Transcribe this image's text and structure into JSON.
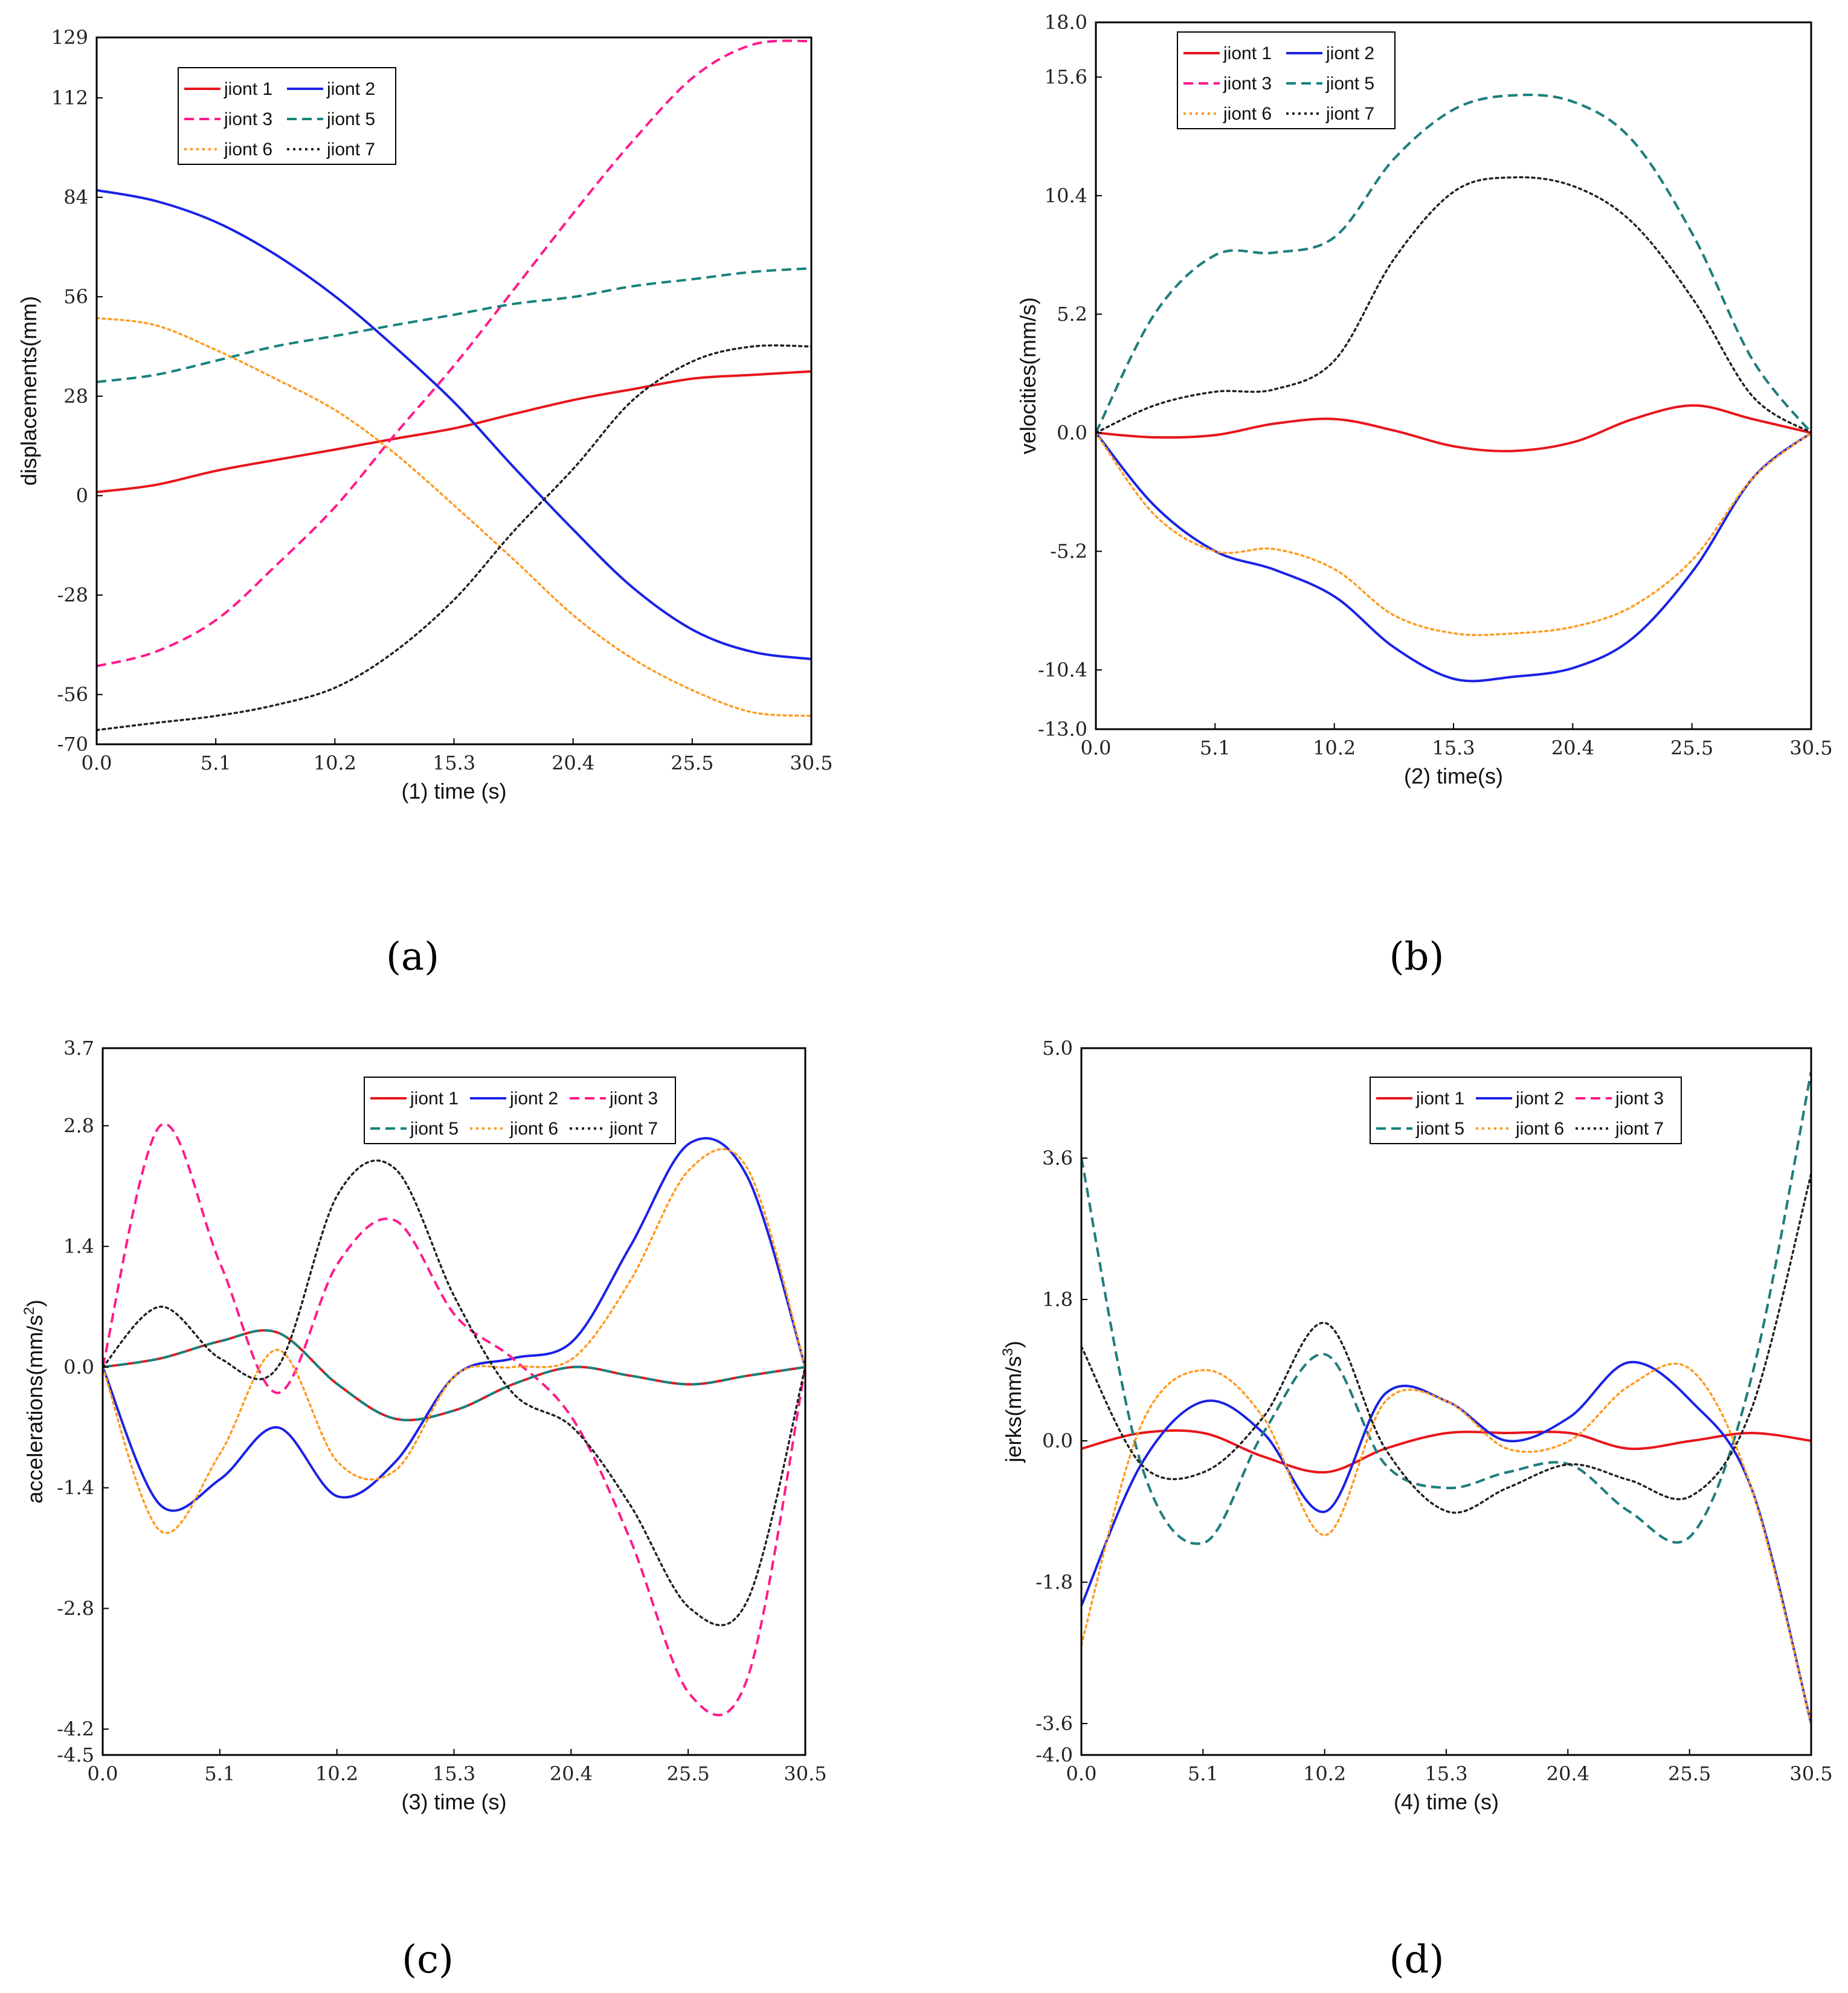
{
  "colors": {
    "jiont 1": "#e8151b",
    "jiont 2": "#1a22e6",
    "jiont 3": "#ff1a8c",
    "jiont 5": "#17827d",
    "jiont 6": "#ff9a1f",
    "jiont 7": "#222222"
  },
  "dash_styles": {
    "jiont 1": "solid",
    "jiont 2": "solid",
    "jiont 3": "dashed",
    "jiont 5": "dashed",
    "jiont 6": "dotted",
    "jiont 7": "dotted"
  },
  "chart_data": [
    {
      "type": "line",
      "panel_label": "(a)",
      "xlabel": "(1) time (s)",
      "ylabel": "displacements(mm)",
      "xlim": [
        0,
        30.5
      ],
      "ylim": [
        -70,
        129
      ],
      "xticks": [
        "0.0",
        "5.1",
        "10.2",
        "15.3",
        "20.4",
        "25.5",
        "30.5"
      ],
      "yticks": [
        -70,
        -56,
        -28,
        0,
        28,
        56,
        84,
        112,
        129
      ],
      "ytick_labels": [
        "-70",
        "-56",
        "-28",
        "0",
        "28",
        "56",
        "84",
        "112",
        "129"
      ],
      "legend_location": "upper-left",
      "legend_columns": 2,
      "series": [
        {
          "name": "jiont 1",
          "x": [
            0,
            2.5,
            5.1,
            7.6,
            10.2,
            12.7,
            15.3,
            17.8,
            20.4,
            22.9,
            25.5,
            28,
            30.5
          ],
          "values": [
            1,
            3,
            7,
            10,
            13,
            16,
            19,
            23,
            27,
            30,
            33,
            34,
            35
          ]
        },
        {
          "name": "jiont 2",
          "x": [
            0,
            2.5,
            5.1,
            7.6,
            10.2,
            12.7,
            15.3,
            17.8,
            20.4,
            22.9,
            25.5,
            28,
            30.5
          ],
          "values": [
            86,
            83,
            77,
            68,
            56,
            42,
            26,
            8,
            -10,
            -26,
            -38,
            -44,
            -46
          ]
        },
        {
          "name": "jiont 3",
          "x": [
            0,
            2.5,
            5.1,
            7.6,
            10.2,
            12.7,
            15.3,
            17.8,
            20.4,
            22.9,
            25.5,
            28,
            30.5
          ],
          "values": [
            -48,
            -44,
            -35,
            -20,
            -3,
            17,
            37,
            58,
            80,
            100,
            118,
            127,
            128
          ]
        },
        {
          "name": "jiont 5",
          "x": [
            0,
            2.5,
            5.1,
            7.6,
            10.2,
            12.7,
            15.3,
            17.8,
            20.4,
            22.9,
            25.5,
            28,
            30.5
          ],
          "values": [
            32,
            34,
            38,
            42,
            45,
            48,
            51,
            54,
            56,
            59,
            61,
            63,
            64
          ]
        },
        {
          "name": "jiont 6",
          "x": [
            0,
            2.5,
            5.1,
            7.6,
            10.2,
            12.7,
            15.3,
            17.8,
            20.4,
            22.9,
            25.5,
            28,
            30.5
          ],
          "values": [
            50,
            48,
            41,
            33,
            24,
            12,
            -3,
            -18,
            -34,
            -46,
            -55,
            -61,
            -62
          ]
        },
        {
          "name": "jiont 7",
          "x": [
            0,
            2.5,
            5.1,
            7.6,
            10.2,
            12.7,
            15.3,
            17.8,
            20.4,
            22.9,
            25.5,
            28,
            30.5
          ],
          "values": [
            -66,
            -64,
            -62,
            -59,
            -54,
            -44,
            -29,
            -10,
            8,
            27,
            38,
            42,
            42
          ]
        }
      ]
    },
    {
      "type": "line",
      "panel_label": "(b)",
      "xlabel": "(2) time(s)",
      "ylabel": "velocities(mm/s)",
      "xlim": [
        0,
        30.5
      ],
      "ylim": [
        -13.0,
        18.0
      ],
      "xticks": [
        "0.0",
        "5.1",
        "10.2",
        "15.3",
        "20.4",
        "25.5",
        "30.5"
      ],
      "yticks": [
        -13.0,
        -10.4,
        -5.2,
        0.0,
        5.2,
        10.4,
        15.6,
        18.0
      ],
      "ytick_labels": [
        "-13.0",
        "-10.4",
        "-5.2",
        "0.0",
        "5.2",
        "10.4",
        "15.6",
        "18.0"
      ],
      "legend_location": "upper-left",
      "legend_columns": 2,
      "series": [
        {
          "name": "jiont 1",
          "x": [
            0,
            2.5,
            5.1,
            7.6,
            10.2,
            12.7,
            15.3,
            17.8,
            20.4,
            22.9,
            25.5,
            28,
            30.5
          ],
          "values": [
            0,
            -0.2,
            -0.1,
            0.4,
            0.6,
            0.1,
            -0.6,
            -0.8,
            -0.4,
            0.6,
            1.2,
            0.6,
            0
          ]
        },
        {
          "name": "jiont 2",
          "x": [
            0,
            2.5,
            5.1,
            7.6,
            10.2,
            12.7,
            15.3,
            17.8,
            20.4,
            22.9,
            25.5,
            28,
            30.5
          ],
          "values": [
            0,
            -3.2,
            -5.2,
            -6.0,
            -7.2,
            -9.4,
            -10.8,
            -10.7,
            -10.3,
            -9.0,
            -6.0,
            -2.0,
            0
          ]
        },
        {
          "name": "jiont 3",
          "x": [
            0,
            2.5,
            5.1,
            7.6,
            10.2,
            12.7,
            15.3,
            17.8,
            20.4,
            22.9,
            25.5,
            28,
            30.5
          ],
          "values": [
            0,
            5.2,
            7.8,
            7.9,
            8.6,
            12.0,
            14.2,
            14.8,
            14.5,
            12.8,
            8.6,
            3.2,
            0
          ]
        },
        {
          "name": "jiont 5",
          "x": [
            0,
            2.5,
            5.1,
            7.6,
            10.2,
            12.7,
            15.3,
            17.8,
            20.4,
            22.9,
            25.5,
            28,
            30.5
          ],
          "values": [
            0,
            5.2,
            7.8,
            7.9,
            8.6,
            12.0,
            14.2,
            14.8,
            14.5,
            12.8,
            8.6,
            3.2,
            0
          ]
        },
        {
          "name": "jiont 6",
          "x": [
            0,
            2.5,
            5.1,
            7.6,
            10.2,
            12.7,
            15.3,
            17.8,
            20.4,
            22.9,
            25.5,
            28,
            30.5
          ],
          "values": [
            0,
            -3.6,
            -5.2,
            -5.1,
            -6.0,
            -8.0,
            -8.8,
            -8.8,
            -8.5,
            -7.6,
            -5.5,
            -2.0,
            0
          ]
        },
        {
          "name": "jiont 7",
          "x": [
            0,
            2.5,
            5.1,
            7.6,
            10.2,
            12.7,
            15.3,
            17.8,
            20.4,
            22.9,
            25.5,
            28,
            30.5
          ],
          "values": [
            0,
            1.2,
            1.8,
            1.9,
            3.2,
            7.6,
            10.6,
            11.2,
            10.8,
            9.2,
            5.8,
            1.6,
            0
          ]
        }
      ]
    },
    {
      "type": "line",
      "panel_label": "(c)",
      "xlabel": "(3) time (s)",
      "ylabel_main": "accelerations(mm/s",
      "ylabel_sup": "2",
      "ylabel_end": ")",
      "xlim": [
        0,
        30.5
      ],
      "ylim": [
        -4.5,
        3.7
      ],
      "xticks": [
        "0.0",
        "5.1",
        "10.2",
        "15.3",
        "20.4",
        "25.5",
        "30.5"
      ],
      "yticks": [
        -4.5,
        -4.2,
        -2.8,
        -1.4,
        0.0,
        1.4,
        2.8,
        3.7
      ],
      "ytick_labels": [
        "-4.5",
        "-4.2",
        "-2.8",
        "-1.4",
        "0.0",
        "1.4",
        "2.8",
        "3.7"
      ],
      "legend_location": "upper-right",
      "legend_columns": 3,
      "series": [
        {
          "name": "jiont 1",
          "x": [
            0,
            2.5,
            5.1,
            7.6,
            10.2,
            12.7,
            15.3,
            17.8,
            20.4,
            22.9,
            25.5,
            28,
            30.5
          ],
          "values": [
            0,
            0.1,
            0.3,
            0.4,
            -0.2,
            -0.6,
            -0.5,
            -0.2,
            0,
            -0.1,
            -0.2,
            -0.1,
            0
          ]
        },
        {
          "name": "jiont 2",
          "x": [
            0,
            2.5,
            5.1,
            7.6,
            10.2,
            12.7,
            15.3,
            17.8,
            20.4,
            22.9,
            25.5,
            28,
            30.5
          ],
          "values": [
            0,
            -1.6,
            -1.3,
            -0.7,
            -1.5,
            -1.1,
            -0.1,
            0.1,
            0.3,
            1.4,
            2.6,
            2.2,
            0
          ]
        },
        {
          "name": "jiont 3",
          "x": [
            0,
            2.5,
            5.1,
            7.6,
            10.2,
            12.7,
            15.3,
            17.8,
            20.4,
            22.9,
            25.5,
            28,
            30.5
          ],
          "values": [
            0,
            2.8,
            1.2,
            -0.3,
            1.2,
            1.7,
            0.6,
            0.1,
            -0.6,
            -2.0,
            -3.8,
            -3.6,
            0
          ]
        },
        {
          "name": "jiont 5",
          "x": [
            0,
            2.5,
            5.1,
            7.6,
            10.2,
            12.7,
            15.3,
            17.8,
            20.4,
            22.9,
            25.5,
            28,
            30.5
          ],
          "values": [
            0,
            0.1,
            0.3,
            0.4,
            -0.2,
            -0.6,
            -0.5,
            -0.2,
            0,
            -0.1,
            -0.2,
            -0.1,
            0
          ]
        },
        {
          "name": "jiont 6",
          "x": [
            0,
            2.5,
            5.1,
            7.6,
            10.2,
            12.7,
            15.3,
            17.8,
            20.4,
            22.9,
            25.5,
            28,
            30.5
          ],
          "values": [
            0,
            -1.9,
            -1.0,
            0.2,
            -1.1,
            -1.2,
            -0.1,
            0,
            0.1,
            1.0,
            2.3,
            2.3,
            0
          ]
        },
        {
          "name": "jiont 7",
          "x": [
            0,
            2.5,
            5.1,
            7.6,
            10.2,
            12.7,
            15.3,
            17.8,
            20.4,
            22.9,
            25.5,
            28,
            30.5
          ],
          "values": [
            0,
            0.7,
            0.1,
            0,
            2.0,
            2.3,
            0.8,
            -0.3,
            -0.7,
            -1.6,
            -2.8,
            -2.7,
            0
          ]
        }
      ]
    },
    {
      "type": "line",
      "panel_label": "(d)",
      "xlabel": "(4) time (s)",
      "ylabel_main": "jerks(mm/s",
      "ylabel_sup": "3",
      "ylabel_end": ")",
      "xlim": [
        0,
        30.5
      ],
      "ylim": [
        -4.0,
        5.0
      ],
      "xticks": [
        "0.0",
        "5.1",
        "10.2",
        "15.3",
        "20.4",
        "25.5",
        "30.5"
      ],
      "yticks": [
        -4.0,
        -3.6,
        -1.8,
        0.0,
        1.8,
        3.6,
        5.0
      ],
      "ytick_labels": [
        "-4.0",
        "-3.6",
        "-1.8",
        "0.0",
        "1.8",
        "3.6",
        "5.0"
      ],
      "legend_location": "upper-right",
      "legend_columns": 3,
      "series": [
        {
          "name": "jiont 1",
          "x": [
            0,
            2.5,
            5.1,
            7.6,
            10.2,
            12.7,
            15.3,
            17.8,
            20.4,
            22.9,
            25.5,
            28,
            30.5
          ],
          "values": [
            -0.1,
            0.1,
            0.1,
            -0.2,
            -0.4,
            -0.1,
            0.1,
            0.1,
            0.1,
            -0.1,
            0,
            0.1,
            0
          ]
        },
        {
          "name": "jiont 2",
          "x": [
            0,
            2.5,
            5.1,
            7.6,
            10.2,
            12.7,
            15.3,
            17.8,
            20.4,
            22.9,
            25.5,
            28,
            30.5
          ],
          "values": [
            -2.1,
            -0.3,
            0.5,
            0.1,
            -0.9,
            0.6,
            0.5,
            0,
            0.3,
            1.0,
            0.5,
            -0.6,
            -3.6
          ]
        },
        {
          "name": "jiont 3",
          "x": [
            0,
            2.5,
            5.1,
            7.6,
            10.2,
            12.7,
            15.3,
            17.8,
            20.4,
            22.9,
            25.5,
            28,
            30.5
          ],
          "values": [
            3.6,
            -0.3,
            -1.3,
            0.1,
            1.1,
            -0.3,
            -0.6,
            -0.4,
            -0.3,
            -0.9,
            -1.2,
            0.8,
            4.7
          ]
        },
        {
          "name": "jiont 5",
          "x": [
            0,
            2.5,
            5.1,
            7.6,
            10.2,
            12.7,
            15.3,
            17.8,
            20.4,
            22.9,
            25.5,
            28,
            30.5
          ],
          "values": [
            3.6,
            -0.3,
            -1.3,
            0.1,
            1.1,
            -0.3,
            -0.6,
            -0.4,
            -0.3,
            -0.9,
            -1.2,
            0.8,
            4.7
          ]
        },
        {
          "name": "jiont 6",
          "x": [
            0,
            2.5,
            5.1,
            7.6,
            10.2,
            12.7,
            15.3,
            17.8,
            20.4,
            22.9,
            25.5,
            28,
            30.5
          ],
          "values": [
            -2.6,
            0.2,
            0.9,
            0.3,
            -1.2,
            0.5,
            0.5,
            -0.1,
            0,
            0.7,
            0.9,
            -0.6,
            -3.6
          ]
        },
        {
          "name": "jiont 7",
          "x": [
            0,
            2.5,
            5.1,
            7.6,
            10.2,
            12.7,
            15.3,
            17.8,
            20.4,
            22.9,
            25.5,
            28,
            30.5
          ],
          "values": [
            1.2,
            -0.3,
            -0.4,
            0.3,
            1.5,
            -0.1,
            -0.9,
            -0.6,
            -0.3,
            -0.5,
            -0.7,
            0.4,
            3.4
          ]
        }
      ]
    }
  ]
}
